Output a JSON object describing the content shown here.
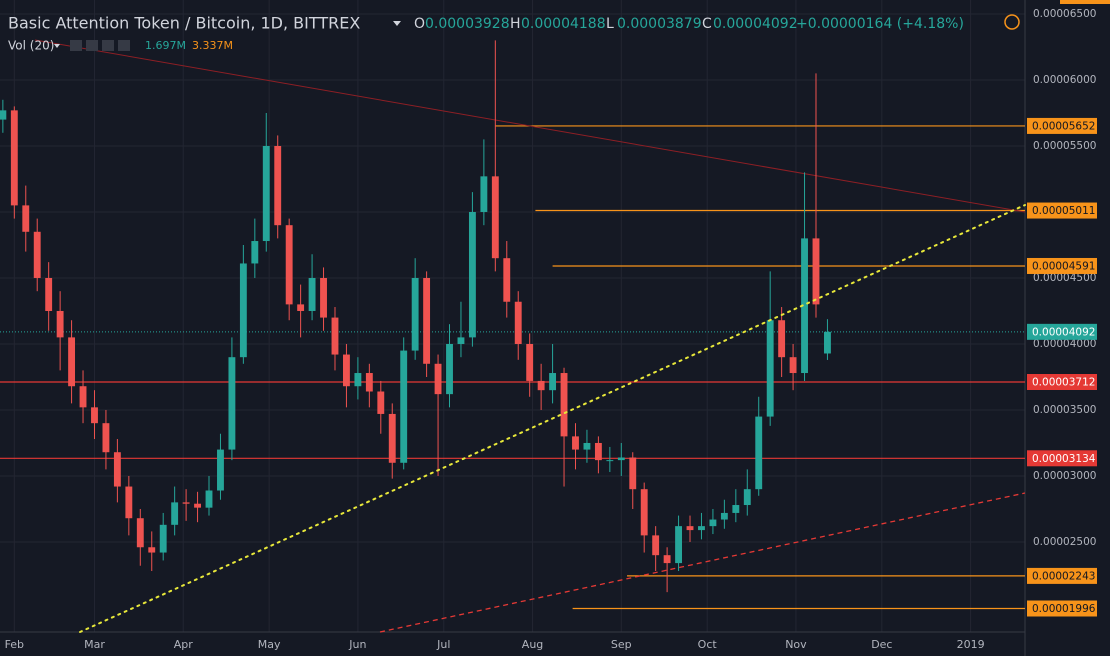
{
  "chart_data": {
    "type": "candlestick",
    "title": "Basic Attention Token / Bitcoin, 1D, BITTREX",
    "ohlc_labels": [
      "O",
      "H",
      "L",
      "C"
    ],
    "change": "+0.00000164 (+4.18%)",
    "volume_legend": {
      "name": "Vol (20)",
      "value_labels": [
        "1.697M",
        "3.337M"
      ]
    },
    "up_color": "#26a69a",
    "down_color": "#ef5350",
    "x": [
      "2018-01-28",
      "2018-02-01",
      "2018-02-05",
      "2018-02-09",
      "2018-02-13",
      "2018-02-17",
      "2018-02-21",
      "2018-02-25",
      "2018-03-01",
      "2018-03-05",
      "2018-03-09",
      "2018-03-13",
      "2018-03-17",
      "2018-03-21",
      "2018-03-25",
      "2018-03-29",
      "2018-04-02",
      "2018-04-06",
      "2018-04-10",
      "2018-04-14",
      "2018-04-18",
      "2018-04-22",
      "2018-04-26",
      "2018-04-30",
      "2018-05-04",
      "2018-05-08",
      "2018-05-12",
      "2018-05-16",
      "2018-05-20",
      "2018-05-24",
      "2018-05-28",
      "2018-06-01",
      "2018-06-05",
      "2018-06-09",
      "2018-06-13",
      "2018-06-17",
      "2018-06-21",
      "2018-06-25",
      "2018-06-29",
      "2018-07-03",
      "2018-07-07",
      "2018-07-11",
      "2018-07-15",
      "2018-07-19",
      "2018-07-23",
      "2018-07-27",
      "2018-07-31",
      "2018-08-04",
      "2018-08-08",
      "2018-08-12",
      "2018-08-16",
      "2018-08-20",
      "2018-08-24",
      "2018-08-28",
      "2018-09-01",
      "2018-09-05",
      "2018-09-09",
      "2018-09-13",
      "2018-09-17",
      "2018-09-21",
      "2018-09-25",
      "2018-09-29",
      "2018-10-03",
      "2018-10-07",
      "2018-10-11",
      "2018-10-15",
      "2018-10-19",
      "2018-10-23",
      "2018-10-27",
      "2018-10-31",
      "2018-11-04",
      "2018-11-08",
      "2018-11-12"
    ],
    "open": [
      5.7e-05,
      5.77e-05,
      5.05e-05,
      4.85e-05,
      4.5e-05,
      4.25e-05,
      4.05e-05,
      3.68e-05,
      3.52e-05,
      3.4e-05,
      3.18e-05,
      2.92e-05,
      2.68e-05,
      2.46e-05,
      2.42e-05,
      2.63e-05,
      2.8e-05,
      2.79e-05,
      2.76e-05,
      2.89e-05,
      3.2e-05,
      3.9e-05,
      4.61e-05,
      4.78e-05,
      5.5e-05,
      4.9e-05,
      4.3e-05,
      4.25e-05,
      4.5e-05,
      4.2e-05,
      3.92e-05,
      3.68e-05,
      3.78e-05,
      3.64e-05,
      3.47e-05,
      3.1e-05,
      3.95e-05,
      4.5e-05,
      3.85e-05,
      3.62e-05,
      4e-05,
      4.05e-05,
      5e-05,
      5.27e-05,
      4.65e-05,
      4.32e-05,
      4e-05,
      3.72e-05,
      3.65e-05,
      3.78e-05,
      3.3e-05,
      3.2e-05,
      3.25e-05,
      3.12e-05,
      3.12e-05,
      3.14e-05,
      2.9e-05,
      2.55e-05,
      2.4e-05,
      2.34e-05,
      2.62e-05,
      2.59e-05,
      2.62e-05,
      2.67e-05,
      2.72e-05,
      2.78e-05,
      2.9e-05,
      3.45e-05,
      4.18e-05,
      3.9e-05,
      3.78e-05,
      4.8e-05,
      3.928e-05
    ],
    "high": [
      5.85e-05,
      5.8e-05,
      5.2e-05,
      4.95e-05,
      4.62e-05,
      4.4e-05,
      4.18e-05,
      3.8e-05,
      3.65e-05,
      3.5e-05,
      3.28e-05,
      3e-05,
      2.75e-05,
      2.58e-05,
      2.72e-05,
      2.92e-05,
      2.9e-05,
      2.88e-05,
      3e-05,
      3.32e-05,
      4.05e-05,
      4.75e-05,
      4.95e-05,
      5.75e-05,
      5.58e-05,
      4.95e-05,
      4.45e-05,
      4.68e-05,
      4.58e-05,
      4.28e-05,
      4e-05,
      3.9e-05,
      3.85e-05,
      3.72e-05,
      3.55e-05,
      4.05e-05,
      4.65e-05,
      4.55e-05,
      3.92e-05,
      4.15e-05,
      4.32e-05,
      5.15e-05,
      5.55e-05,
      6.3e-05,
      4.78e-05,
      4.4e-05,
      4.08e-05,
      3.85e-05,
      4e-05,
      3.82e-05,
      3.4e-05,
      3.35e-05,
      3.3e-05,
      3.22e-05,
      3.25e-05,
      3.18e-05,
      2.95e-05,
      2.62e-05,
      2.46e-05,
      2.7e-05,
      2.7e-05,
      2.72e-05,
      2.75e-05,
      2.82e-05,
      2.9e-05,
      3.05e-05,
      3.6e-05,
      4.55e-05,
      4.28e-05,
      4e-05,
      5.3e-05,
      6.05e-05,
      4.188e-05
    ],
    "low": [
      5.6e-05,
      4.95e-05,
      4.7e-05,
      4.4e-05,
      4.1e-05,
      3.8e-05,
      3.55e-05,
      3.4e-05,
      3.28e-05,
      3.05e-05,
      2.8e-05,
      2.55e-05,
      2.32e-05,
      2.28e-05,
      2.36e-05,
      2.55e-05,
      2.66e-05,
      2.65e-05,
      2.7e-05,
      2.82e-05,
      3.12e-05,
      3.85e-05,
      4.5e-05,
      4.7e-05,
      4.8e-05,
      4.18e-05,
      4.05e-05,
      4.18e-05,
      4.1e-05,
      3.8e-05,
      3.52e-05,
      3.58e-05,
      3.52e-05,
      3.32e-05,
      2.98e-05,
      3.05e-05,
      3.88e-05,
      3.75e-05,
      3e-05,
      3.52e-05,
      3.9e-05,
      3.98e-05,
      4.9e-05,
      4.55e-05,
      4.2e-05,
      3.88e-05,
      3.6e-05,
      3.5e-05,
      3.55e-05,
      2.92e-05,
      3.05e-05,
      3.1e-05,
      3.02e-05,
      3.03e-05,
      3e-05,
      2.75e-05,
      2.42e-05,
      2.28e-05,
      2.12e-05,
      2.28e-05,
      2.5e-05,
      2.52e-05,
      2.56e-05,
      2.6e-05,
      2.65e-05,
      2.7e-05,
      2.85e-05,
      3.38e-05,
      3.75e-05,
      3.65e-05,
      3.72e-05,
      4.2e-05,
      3.879e-05
    ],
    "close": [
      5.77e-05,
      5.05e-05,
      4.85e-05,
      4.5e-05,
      4.25e-05,
      4.05e-05,
      3.68e-05,
      3.52e-05,
      3.4e-05,
      3.18e-05,
      2.92e-05,
      2.68e-05,
      2.46e-05,
      2.42e-05,
      2.63e-05,
      2.8e-05,
      2.79e-05,
      2.76e-05,
      2.89e-05,
      3.2e-05,
      3.9e-05,
      4.61e-05,
      4.78e-05,
      5.5e-05,
      4.9e-05,
      4.3e-05,
      4.25e-05,
      4.5e-05,
      4.2e-05,
      3.92e-05,
      3.68e-05,
      3.78e-05,
      3.64e-05,
      3.47e-05,
      3.1e-05,
      3.95e-05,
      4.5e-05,
      3.85e-05,
      3.62e-05,
      4e-05,
      4.05e-05,
      5e-05,
      5.27e-05,
      4.65e-05,
      4.32e-05,
      4e-05,
      3.72e-05,
      3.65e-05,
      3.78e-05,
      3.3e-05,
      3.2e-05,
      3.25e-05,
      3.12e-05,
      3.12e-05,
      3.14e-05,
      2.9e-05,
      2.55e-05,
      2.4e-05,
      2.34e-05,
      2.62e-05,
      2.59e-05,
      2.62e-05,
      2.67e-05,
      2.72e-05,
      2.78e-05,
      2.9e-05,
      3.45e-05,
      4.18e-05,
      3.9e-05,
      3.78e-05,
      4.8e-05,
      4.3e-05,
      4.092e-05
    ],
    "xlim": [
      "2018-01-27",
      "2019-01-20"
    ],
    "xticks": [
      {
        "value": "2018-02-01",
        "label": "Feb"
      },
      {
        "value": "2018-03-01",
        "label": "Mar"
      },
      {
        "value": "2018-04-01",
        "label": "Apr"
      },
      {
        "value": "2018-05-01",
        "label": "May"
      },
      {
        "value": "2018-06-01",
        "label": "Jun"
      },
      {
        "value": "2018-07-01",
        "label": "Jul"
      },
      {
        "value": "2018-08-01",
        "label": "Aug"
      },
      {
        "value": "2018-09-01",
        "label": "Sep"
      },
      {
        "value": "2018-10-01",
        "label": "Oct"
      },
      {
        "value": "2018-11-01",
        "label": "Nov"
      },
      {
        "value": "2018-12-01",
        "label": "Dec"
      },
      {
        "value": "2019-01-01",
        "label": "2019"
      }
    ],
    "ylim": [
      1.818e-05,
      6.606e-05
    ],
    "yticks": [
      {
        "value": 2.5e-05,
        "label": "0.00002500"
      },
      {
        "value": 3e-05,
        "label": "0.00003000"
      },
      {
        "value": 3.5e-05,
        "label": "0.00003500"
      },
      {
        "value": 4e-05,
        "label": "0.00004000"
      },
      {
        "value": 4.5e-05,
        "label": "0.00004500"
      },
      {
        "value": 5e-05,
        "label": "0.00005000"
      },
      {
        "value": 5.5e-05,
        "label": "0.00005500"
      },
      {
        "value": 6e-05,
        "label": "0.00006000"
      },
      {
        "value": 6.5e-05,
        "label": "0.00006500"
      }
    ],
    "grid": true,
    "price_line_color": "#26a69a",
    "levels": [
      {
        "value": 5.652e-05,
        "color": "#f7931a",
        "from": "2018-07-19"
      },
      {
        "value": 5.011e-05,
        "color": "#f7931a",
        "from": "2018-08-02"
      },
      {
        "value": 4.591e-05,
        "color": "#f7931a",
        "from": "2018-08-08"
      },
      {
        "value": 3.712e-05,
        "color": "#e53935"
      },
      {
        "value": 3.134e-05,
        "color": "#e53935"
      },
      {
        "value": 2.243e-05,
        "color": "#f7931a",
        "from": "2018-09-03"
      },
      {
        "value": 1.996e-05,
        "color": "#f7931a",
        "from": "2018-08-15"
      }
    ]
  }
}
